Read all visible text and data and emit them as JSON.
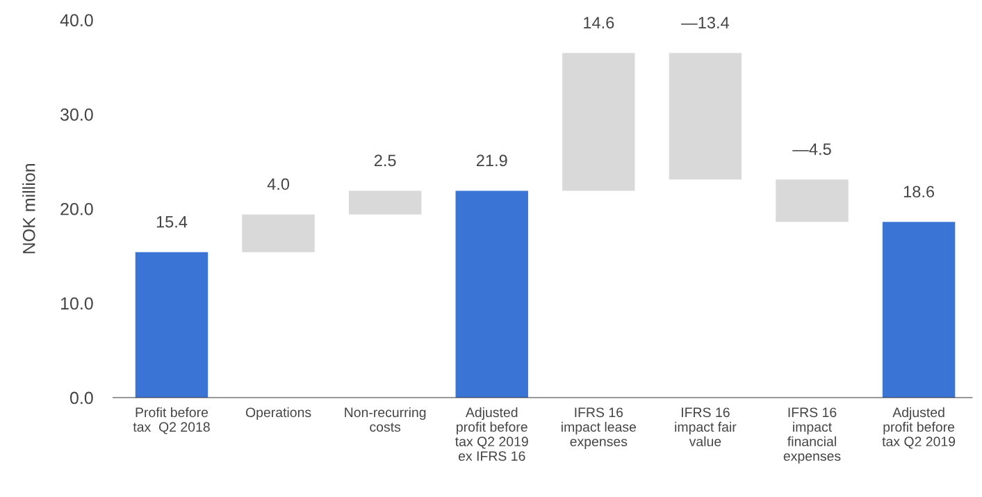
{
  "chart_data": {
    "type": "bar",
    "ylabel": "NOK million",
    "categories": [
      "Profit before\ntax  Q2 2018",
      "Operations",
      "Non-recurring\ncosts",
      "Adjusted\nprofit before\ntax Q2 2019\nex IFRS 16",
      "IFRS 16\nimpact lease\nexpenses",
      "IFRS 16\nimpact fair\nvalue",
      "IFRS 16\nimpact\nfinancial\nexpenses",
      "Adjusted\nprofit before\ntax Q2 2019"
    ],
    "values": [
      15.4,
      4.0,
      2.5,
      21.9,
      14.6,
      -13.4,
      -4.5,
      18.6
    ],
    "base": [
      0,
      15.4,
      19.4,
      0,
      21.9,
      36.5,
      23.1,
      0
    ],
    "colors": [
      "#3a75d6",
      "#d9d9d9",
      "#d9d9d9",
      "#3a75d6",
      "#d9d9d9",
      "#d9d9d9",
      "#d9d9d9",
      "#3a75d6"
    ],
    "value_labels": [
      "15.4",
      "4.0",
      "2.5",
      "21.9",
      "14.6",
      "—13.4",
      "—4.5",
      "18.6"
    ],
    "ylim": [
      0,
      40
    ],
    "yticks": [
      {
        "value": 0,
        "label": "0.0"
      },
      {
        "value": 10,
        "label": "10.0"
      },
      {
        "value": 20,
        "label": "20.0"
      },
      {
        "value": 30,
        "label": "30.0"
      },
      {
        "value": 40,
        "label": "40.0"
      }
    ],
    "grid": false
  }
}
